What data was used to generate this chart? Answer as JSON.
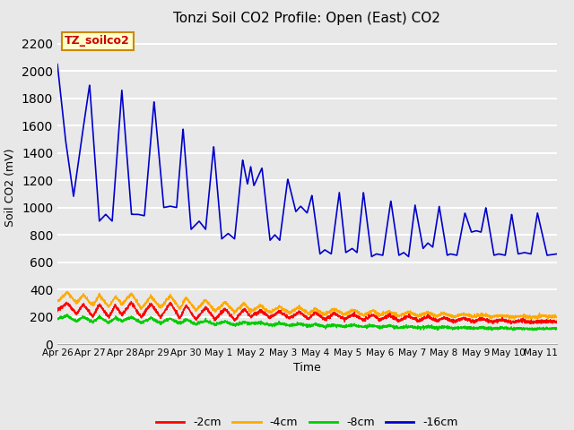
{
  "title": "Tonzi Soil CO2 Profile: Open (East) CO2",
  "ylabel": "Soil CO2 (mV)",
  "xlabel": "Time",
  "ylim": [
    0,
    2300
  ],
  "yticks": [
    0,
    200,
    400,
    600,
    800,
    1000,
    1200,
    1400,
    1600,
    1800,
    2000,
    2200
  ],
  "background_color": "#e8e8e8",
  "plot_bg_color": "#e8e8e8",
  "grid_color": "#ffffff",
  "legend_label": "TZ_soilco2",
  "legend_bg": "#ffffcc",
  "legend_border": "#cc8800",
  "series_colors": {
    "2cm": "#ff0000",
    "4cm": "#ffaa00",
    "8cm": "#00cc00",
    "16cm": "#0000cc"
  },
  "series_labels": [
    "-2cm",
    "-4cm",
    "-8cm",
    "-16cm"
  ],
  "x_tick_labels": [
    "Apr 26",
    "Apr 27",
    "Apr 28",
    "Apr 29",
    "Apr 30",
    "May 1",
    "May 2",
    "May 3",
    "May 4",
    "May 5",
    "May 6",
    "May 7",
    "May 8",
    "May 9",
    "May 10",
    "May 11"
  ],
  "x_tick_positions": [
    0,
    1,
    2,
    3,
    4,
    5,
    6,
    7,
    8,
    9,
    10,
    11,
    12,
    13,
    14,
    15
  ],
  "xlim": [
    0,
    15.5
  ],
  "figsize": [
    6.4,
    4.8
  ],
  "dpi": 100
}
